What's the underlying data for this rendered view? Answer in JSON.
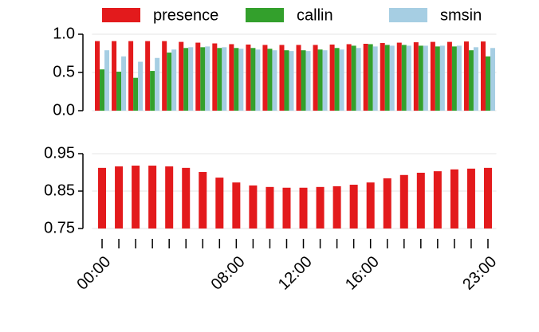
{
  "chart_data": [
    {
      "type": "grouped-bar",
      "series": [
        {
          "name": "presence",
          "color": "#e31a1c",
          "values": [
            0.91,
            0.91,
            0.91,
            0.91,
            0.91,
            0.9,
            0.89,
            0.88,
            0.87,
            0.865,
            0.86,
            0.86,
            0.86,
            0.86,
            0.865,
            0.87,
            0.875,
            0.885,
            0.89,
            0.895,
            0.9,
            0.9,
            0.905,
            0.905
          ]
        },
        {
          "name": "callin",
          "color": "#33a02c",
          "values": [
            0.54,
            0.51,
            0.43,
            0.52,
            0.76,
            0.82,
            0.83,
            0.82,
            0.82,
            0.82,
            0.81,
            0.79,
            0.79,
            0.8,
            0.82,
            0.85,
            0.87,
            0.86,
            0.86,
            0.85,
            0.84,
            0.84,
            0.79,
            0.71
          ]
        },
        {
          "name": "smsin",
          "color": "#a6cee3",
          "values": [
            0.79,
            0.71,
            0.64,
            0.69,
            0.8,
            0.83,
            0.84,
            0.83,
            0.81,
            0.8,
            0.79,
            0.78,
            0.78,
            0.79,
            0.8,
            0.82,
            0.84,
            0.85,
            0.85,
            0.85,
            0.85,
            0.85,
            0.83,
            0.82
          ]
        }
      ],
      "ylim": [
        0,
        1
      ],
      "yticks": [
        {
          "value": 0,
          "label": "0.0"
        },
        {
          "value": 0.5,
          "label": "0.5"
        },
        {
          "value": 1,
          "label": "1.0"
        }
      ],
      "grid": true
    },
    {
      "type": "bar",
      "categories": [
        "00:00",
        null,
        null,
        null,
        null,
        null,
        null,
        null,
        "08:00",
        null,
        null,
        null,
        "12:00",
        null,
        null,
        null,
        "16:00",
        null,
        null,
        null,
        null,
        null,
        null,
        "23:00"
      ],
      "values": [
        0.912,
        0.916,
        0.918,
        0.918,
        0.916,
        0.912,
        0.901,
        0.886,
        0.873,
        0.865,
        0.861,
        0.859,
        0.859,
        0.861,
        0.863,
        0.867,
        0.873,
        0.884,
        0.893,
        0.899,
        0.903,
        0.908,
        0.91,
        0.912
      ],
      "color": "#e31a1c",
      "ylim": [
        0.75,
        0.95
      ],
      "yticks": [
        0.75,
        0.85,
        0.95
      ],
      "grid": true
    }
  ]
}
